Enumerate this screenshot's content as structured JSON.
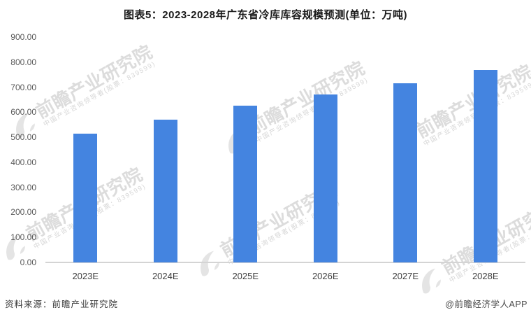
{
  "title": "图表5：2023-2028年广东省冷库库容规模预测(单位：万吨)",
  "chart_data": {
    "type": "bar",
    "title": "图表5：2023-2028年广东省冷库库容规模预测(单位：万吨)",
    "unit": "万吨",
    "categories": [
      "2023E",
      "2024E",
      "2025E",
      "2026E",
      "2027E",
      "2028E"
    ],
    "values": [
      515,
      570,
      625,
      670,
      715,
      770
    ],
    "xlabel": "",
    "ylabel": "",
    "ylim": [
      0,
      900
    ],
    "ytick_step": 100,
    "ytick_labels": [
      "900.00",
      "800.00",
      "700.00",
      "600.00",
      "500.00",
      "400.00",
      "300.00",
      "200.00",
      "100.00",
      "0.00"
    ],
    "bar_color": "#4484e0",
    "grid": false,
    "legend_position": "none"
  },
  "footer": {
    "source_label": "资料来源：前瞻产业研究院",
    "app_label": "@前瞻经济学人APP"
  },
  "watermark": {
    "brand_text": "前瞻产业研究院",
    "sub_text": "中国产业咨询领导者(股票：839599)",
    "logo": "qianzhan-swoosh-logo"
  }
}
